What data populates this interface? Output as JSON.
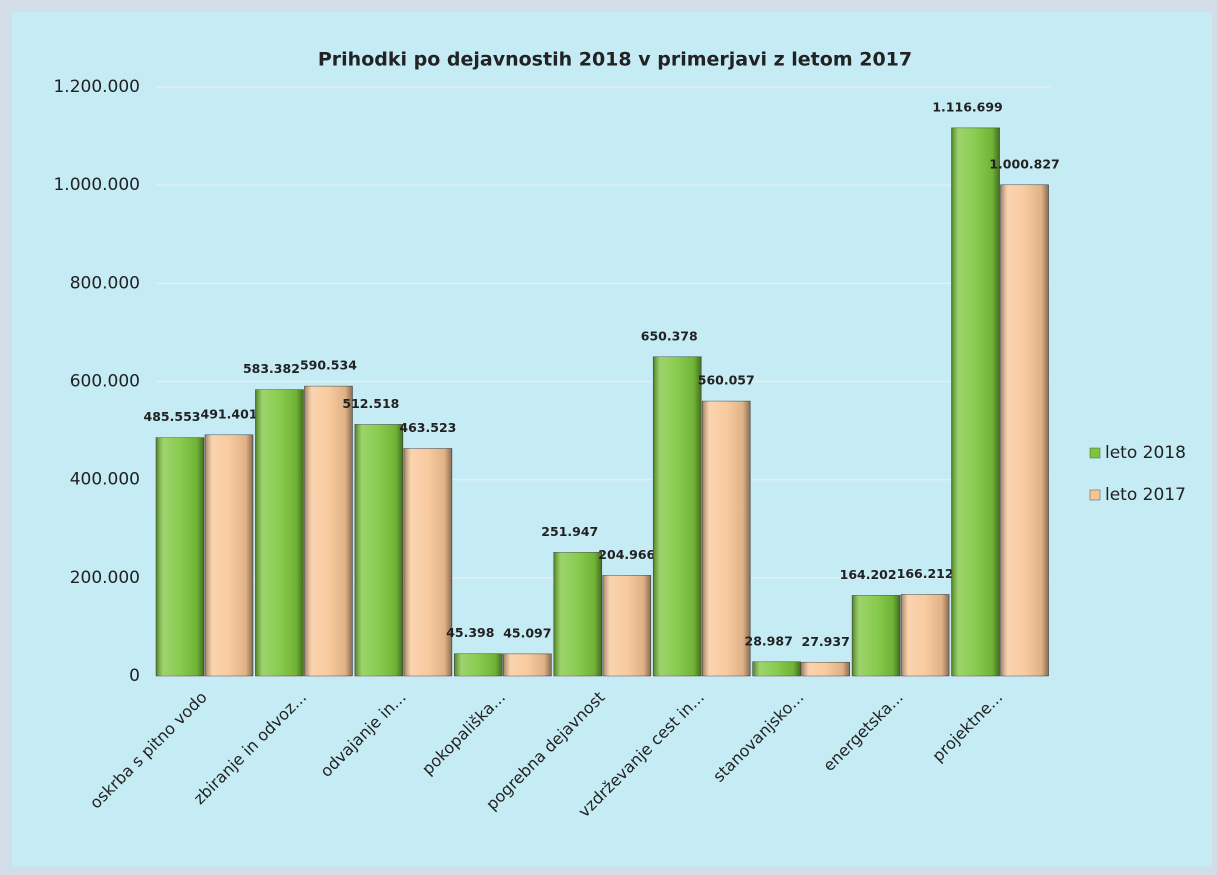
{
  "chart_data": {
    "type": "bar",
    "title": "Prihodki po dejavnostih 2018 v primerjavi z letom 2017",
    "categories": [
      "oskrba s pitno vodo",
      "zbiranje in odvoz...",
      "odvajanje in...",
      "pokopališka...",
      "pogrebna dejavnost",
      "vzdrževanje cest in...",
      "stanovanjsko...",
      "energetska...",
      "projektne..."
    ],
    "series": [
      {
        "name": "leto 2018",
        "color": "#7cc63c",
        "values": [
          485553,
          583382,
          512518,
          45398,
          251947,
          650378,
          28987,
          164202,
          1116699
        ],
        "value_labels": [
          "485.553",
          "583.382",
          "512.518",
          "45.398",
          "251.947",
          "650.378",
          "28.987",
          "164.202",
          "1.116.699"
        ]
      },
      {
        "name": "leto 2017",
        "color": "#f8c595",
        "values": [
          491401,
          590534,
          463523,
          45097,
          204966,
          560057,
          27937,
          166212,
          1000827
        ],
        "value_labels": [
          "491.401",
          "590.534",
          "463.523",
          "45.097",
          "204.966",
          "560.057",
          "27.937",
          "166.212",
          "1.000.827"
        ]
      }
    ],
    "ylim": [
      0,
      1200000
    ],
    "yticks": [
      0,
      {
        "value": 200000,
        "label": "200.000"
      },
      {
        "value": 400000,
        "label": "400.000"
      },
      {
        "value": 600000,
        "label": "600.000"
      },
      {
        "value": 800000,
        "label": "800.000"
      },
      {
        "value": 1000000,
        "label": "1.000.000"
      },
      {
        "value": 1200000,
        "label": "1.200.000"
      }
    ],
    "grid": true,
    "legend": "right"
  }
}
